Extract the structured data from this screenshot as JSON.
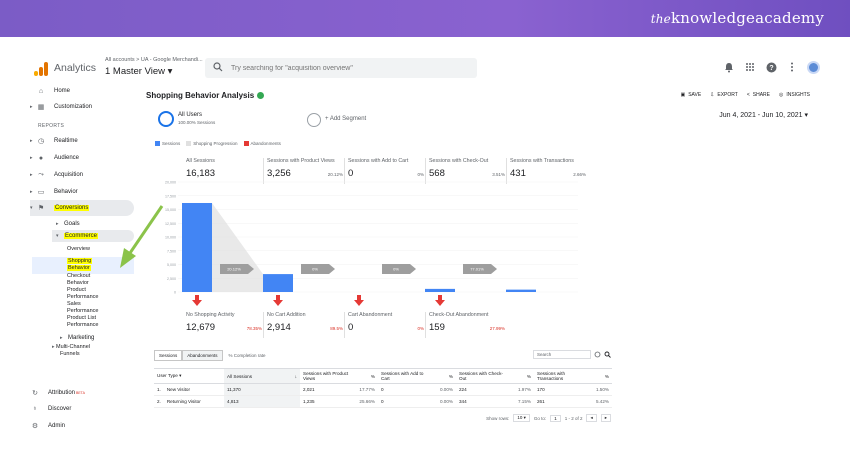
{
  "banner": {
    "brand_the": "the",
    "brand_rest": "knowledgeacademy"
  },
  "app": {
    "name": "Analytics",
    "account_crumb": "All accounts > UA - Google Merchandi...",
    "view": "1 Master View ▾",
    "search_placeholder": "Try searching for \"acquisition overview\""
  },
  "topbar_icons": [
    "bell-icon",
    "apps-grid-icon",
    "help-icon",
    "more-vert-icon"
  ],
  "sidebar": {
    "home": "Home",
    "customization": "Customization",
    "reports_label": "REPORTS",
    "items": [
      "Realtime",
      "Audience",
      "Acquisition",
      "Behavior",
      "Conversions"
    ],
    "goals": "Goals",
    "ecommerce": "Ecommerce",
    "overview": "Overview",
    "shopping_behavior": [
      "Shopping",
      "Behavior"
    ],
    "sub_items": [
      "Checkout",
      "Behavior",
      "Product",
      "Performance",
      "Sales",
      "Performance",
      "Product List",
      "Performance"
    ],
    "marketing": "Marketing",
    "mcf": [
      "Multi-Channel",
      "Funnels"
    ],
    "attribution": "Attribution",
    "attribution_badge": "BETA",
    "discover": "Discover",
    "admin": "Admin"
  },
  "report": {
    "title": "Shopping Behavior Analysis",
    "actions": [
      "SAVE",
      "EXPORT",
      "SHARE",
      "INSIGHTS"
    ],
    "segment_name": "All Users",
    "segment_sub": "100.00% Sessions",
    "add_segment": "+ Add Segment",
    "date_range": "Jun 4, 2021 - Jun 10, 2021 ▾",
    "legend": [
      "Sessions",
      "Shopping Progression",
      "Abandonments"
    ]
  },
  "colors": {
    "sessions": "#4285f4",
    "progression": "#e0e0e0",
    "abandon": "#e53935",
    "arrow": "#8bc34a",
    "highlight": "#ffff00"
  },
  "top_metrics": [
    {
      "label": "All Sessions",
      "value": "16,183",
      "pct": ""
    },
    {
      "label": "Sessions with Product Views",
      "value": "3,256",
      "pct": "20.12%"
    },
    {
      "label": "Sessions with Add to Cart",
      "value": "0",
      "pct": "0%"
    },
    {
      "label": "Sessions with Check-Out",
      "value": "568",
      "pct": "3.51%"
    },
    {
      "label": "Sessions with Transactions",
      "value": "431",
      "pct": "2.66%"
    }
  ],
  "bottom_metrics": [
    {
      "label": "No Shopping Activity",
      "value": "12,679",
      "pct": "78.35%"
    },
    {
      "label": "No Cart Addition",
      "value": "2,914",
      "pct": "89.5%"
    },
    {
      "label": "Cart Abandonment",
      "value": "0",
      "pct": "0%"
    },
    {
      "label": "Check-Out Abandonment",
      "value": "159",
      "pct": "27.99%"
    }
  ],
  "chart_data": {
    "type": "bar",
    "categories": [
      "All Sessions",
      "Sessions with Product Views",
      "Sessions with Add to Cart",
      "Sessions with Check-Out",
      "Sessions with Transactions"
    ],
    "values": [
      16183,
      3256,
      0,
      568,
      431
    ],
    "progression_labels": [
      "20.12%",
      "0%",
      "0%",
      "77.01%"
    ],
    "y_ticks": [
      "20,000",
      "17,500",
      "15,000",
      "12,500",
      "10,000",
      "7,500",
      "5,000",
      "2,500",
      "0"
    ],
    "ylim": [
      0,
      20000
    ]
  },
  "table": {
    "tabs": [
      "Sessions",
      "Abandonments",
      "% Completion rate"
    ],
    "search_placeholder": "Search",
    "headers": [
      "User Type",
      "All Sessions",
      "Sessions with Product Views",
      "%",
      "Sessions with Add to Cart",
      "%",
      "Sessions with Check-Out",
      "%",
      "Sessions with Transactions",
      "%"
    ],
    "rows": [
      [
        "1.",
        "New Visitor",
        "11,370",
        "2,021",
        "17.77%",
        "0",
        "0.00%",
        "224",
        "1.97%",
        "170",
        "1.50%"
      ],
      [
        "2.",
        "Returning Visitor",
        "4,813",
        "1,235",
        "25.66%",
        "0",
        "0.00%",
        "344",
        "7.15%",
        "261",
        "5.42%"
      ]
    ],
    "show_rows_label": "Show rows:",
    "show_rows_value": "10",
    "goto_label": "Go to:",
    "goto_value": "1",
    "page_range": "1 - 2 of 2"
  }
}
